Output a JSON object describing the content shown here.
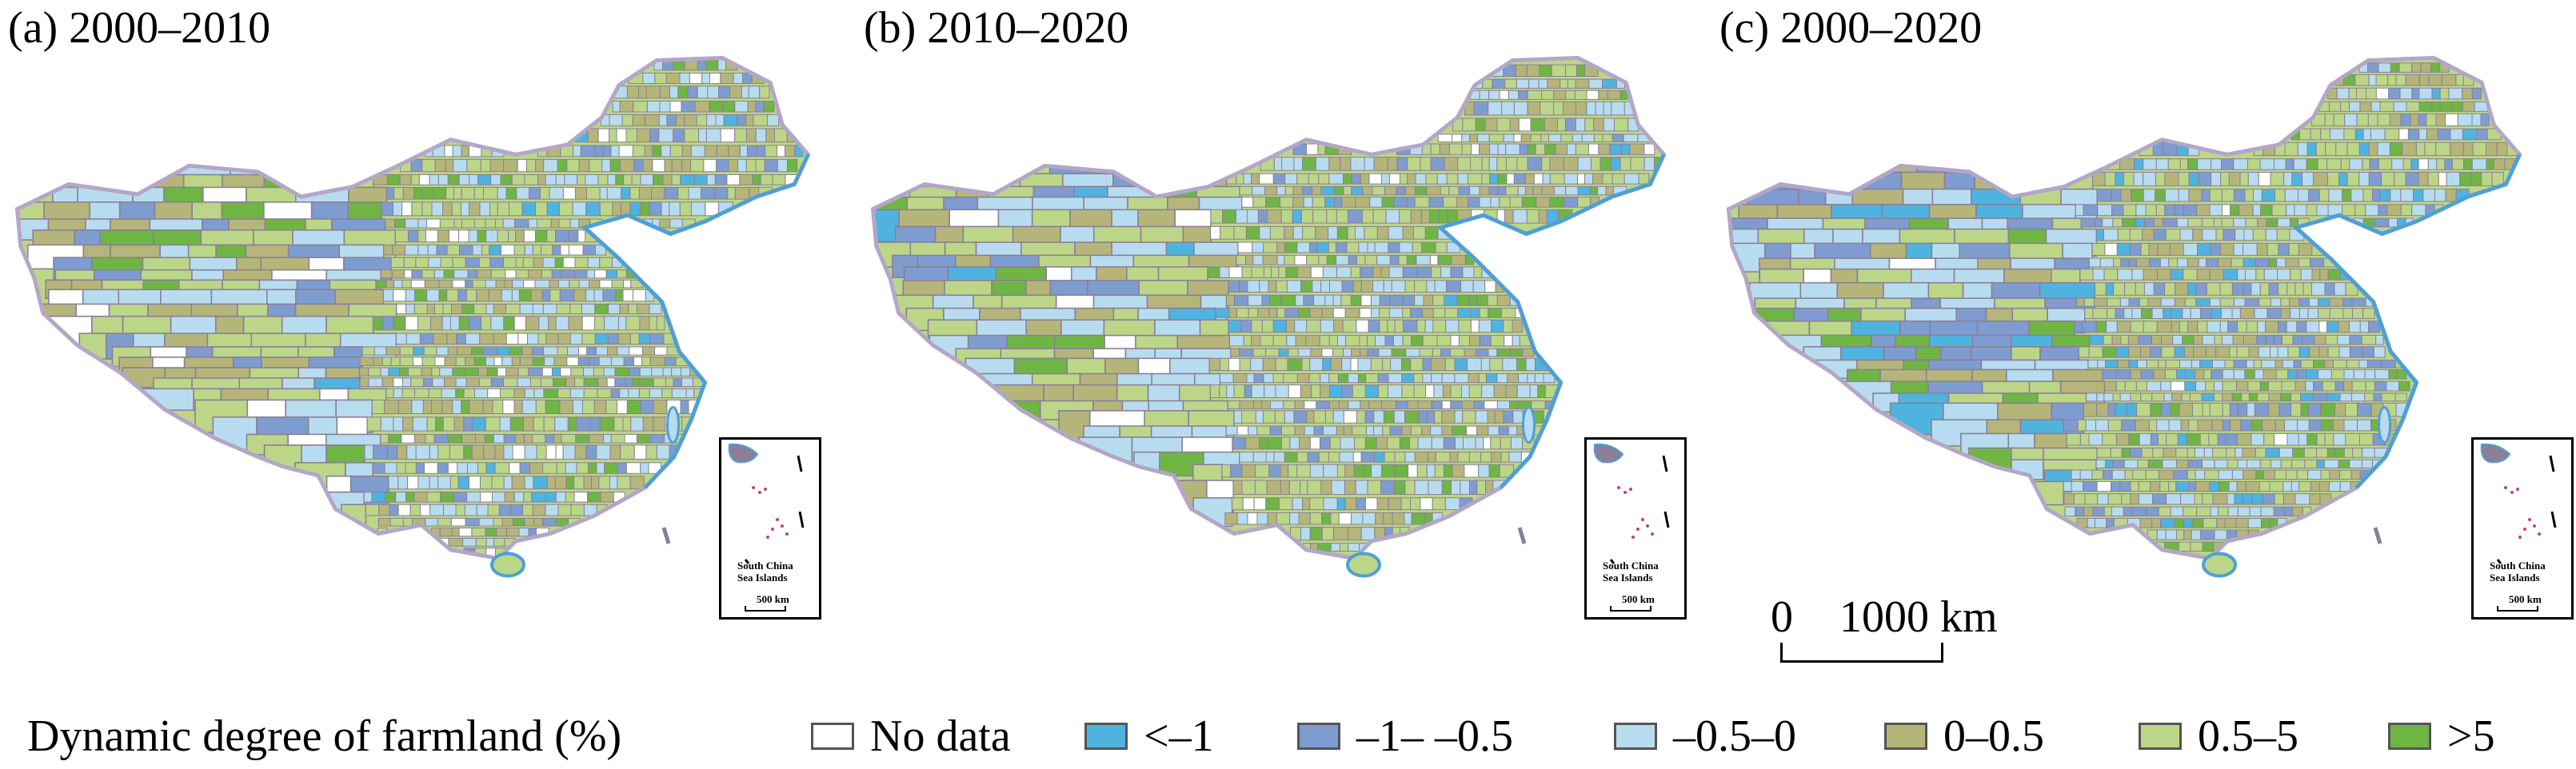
{
  "panels": [
    {
      "title": "(a) 2000–2010"
    },
    {
      "title": "(b) 2010–2020"
    },
    {
      "title": "(c) 2000–2020"
    }
  ],
  "inset": {
    "label_line1": "South China",
    "label_line2": "Sea Islands",
    "scale_label": "500 km"
  },
  "scalebar": {
    "start": "0",
    "end": "1000 km"
  },
  "legend": {
    "title": "Dynamic degree of farmland (%)",
    "items": [
      {
        "label": "No data",
        "color": "#ffffff"
      },
      {
        "label": "<–1",
        "color": "#4fb3e0"
      },
      {
        "label": "–1– –0.5",
        "color": "#7e9ccf"
      },
      {
        "label": "–0.5–0",
        "color": "#b8dcef"
      },
      {
        "label": "0–0.5",
        "color": "#b5b57a"
      },
      {
        "label": "0.5–5",
        "color": "#bcd687"
      },
      {
        "label": ">5",
        "color": "#6fb544"
      }
    ]
  },
  "colors": {
    "boundary": "#8a7f96",
    "coast": "#4f9fd6",
    "border_outline": "#b3a6c7"
  }
}
